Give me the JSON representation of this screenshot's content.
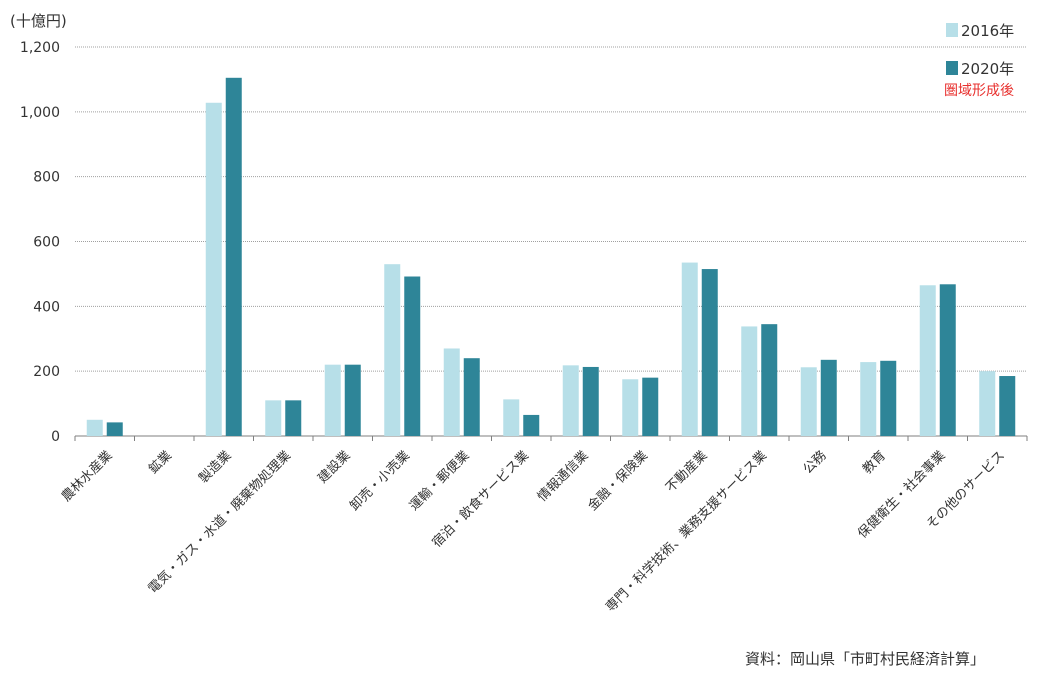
{
  "unit_label": "(十億円)",
  "source": "資料：岡山県「市町村民経済計算」",
  "legend_note": "圏域形成後",
  "colors": {
    "series_2016": "#b7dfe8",
    "series_2020": "#2e8598",
    "note": "#e8312f",
    "grid": "#a0a0a0",
    "axis": "#7f7f7f"
  },
  "chart_data": {
    "type": "bar",
    "title": "",
    "xlabel": "",
    "ylabel": "(十億円)",
    "ylim": [
      0,
      1200
    ],
    "yticks": [
      0,
      200,
      400,
      600,
      800,
      1000,
      1200
    ],
    "ytick_labels": [
      "0",
      "200",
      "400",
      "600",
      "800",
      "1,000",
      "1,200"
    ],
    "grid": true,
    "legend_position": "top-right",
    "categories": [
      "農林水産業",
      "鉱業",
      "製造業",
      "電気・ガス・水道・廃棄物処理業",
      "建設業",
      "卸売・小売業",
      "運輸・郵便業",
      "宿泊・飲食サービス業",
      "情報通信業",
      "金融・保険業",
      "不動産業",
      "専門・科学技術、業務支援サービス業",
      "公務",
      "教育",
      "保健衛生・社会事業",
      "その他のサービス"
    ],
    "series": [
      {
        "name": "2016年",
        "values": [
          50,
          0,
          1028,
          110,
          220,
          530,
          270,
          113,
          218,
          175,
          535,
          338,
          212,
          228,
          465,
          200
        ]
      },
      {
        "name": "2020年",
        "values": [
          42,
          0,
          1105,
          110,
          220,
          492,
          240,
          65,
          213,
          180,
          515,
          345,
          235,
          232,
          468,
          185
        ]
      }
    ]
  }
}
